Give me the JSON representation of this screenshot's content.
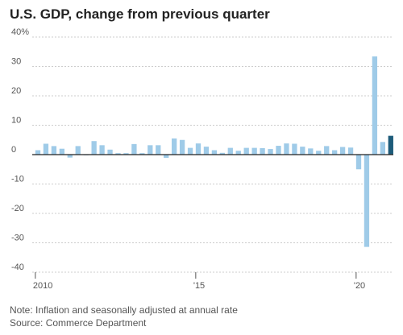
{
  "chart_data": {
    "type": "bar",
    "title": "U.S. GDP, change from previous quarter",
    "note": "Note: Inflation and seasonally adjusted at annual rate",
    "source": "Source: Commerce Department",
    "ylim": [
      -40,
      40
    ],
    "y_ticks": [
      40,
      30,
      20,
      10,
      0,
      -10,
      -20,
      -30,
      -40
    ],
    "y_tick_labels": [
      "40%",
      "30",
      "20",
      "10",
      "0",
      "-10",
      "-20",
      "-30",
      "-40"
    ],
    "x_ticks": [
      {
        "label": "2010",
        "index": 0
      },
      {
        "label": "'15",
        "index": 20
      },
      {
        "label": "'20",
        "index": 40
      }
    ],
    "grid": true,
    "colors": {
      "bar": "#9fcbe8",
      "highlight": "#1d5b7a",
      "zero_line": "#222222",
      "grid": "#cccccc"
    },
    "highlight_index": 44,
    "values": [
      1.5,
      3.7,
      2.9,
      2.0,
      -1.0,
      2.9,
      -0.1,
      4.6,
      3.2,
      1.7,
      0.5,
      0.5,
      3.6,
      0.5,
      3.2,
      3.2,
      -1.1,
      5.5,
      5.0,
      2.3,
      3.8,
      2.7,
      1.5,
      0.6,
      2.3,
      1.3,
      2.3,
      2.3,
      2.2,
      1.9,
      3.0,
      3.8,
      3.7,
      2.7,
      2.1,
      1.3,
      2.9,
      1.5,
      2.6,
      2.4,
      -5.0,
      -31.4,
      33.4,
      4.3,
      6.4
    ]
  }
}
